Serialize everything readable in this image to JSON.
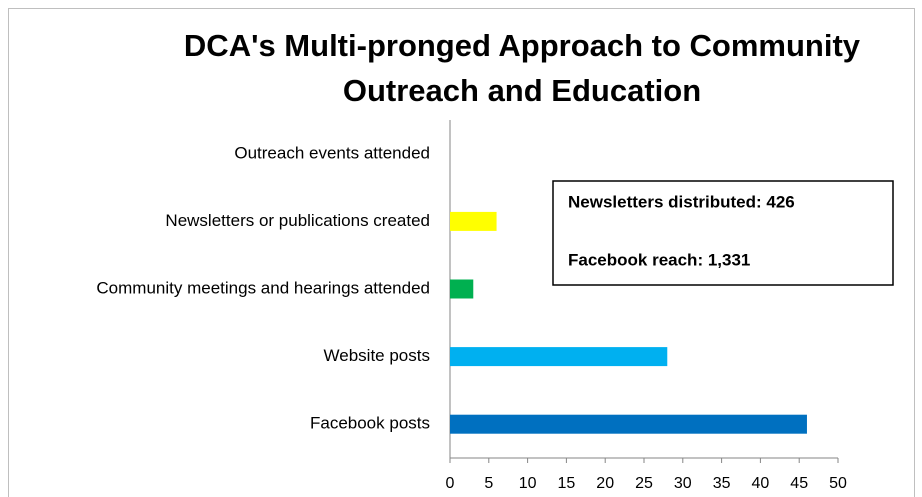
{
  "chart_data": {
    "type": "bar",
    "orientation": "horizontal",
    "title": [
      "DCA's Multi-pronged Approach to Community",
      "Outreach and Education"
    ],
    "categories": [
      "Outreach events attended",
      "Newsletters or publications created",
      "Community meetings and hearings attended",
      "Website posts",
      "Facebook posts"
    ],
    "values": [
      0,
      6,
      3,
      28,
      46
    ],
    "colors": [
      null,
      "#ffff00",
      "#00b050",
      "#00b0f0",
      "#0070c0"
    ],
    "xlim": [
      0,
      50
    ],
    "xticks": [
      0,
      5,
      10,
      15,
      20,
      25,
      30,
      35,
      40,
      45,
      50
    ],
    "annotations": [
      "Newsletters distributed: 426",
      "Facebook reach: 1,331"
    ]
  }
}
